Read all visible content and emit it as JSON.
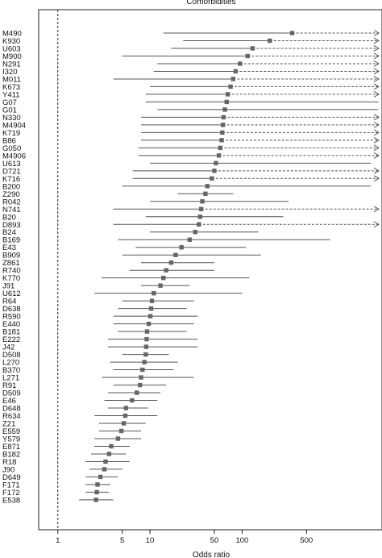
{
  "chart_data": {
    "type": "forest",
    "title": "Comorbidities",
    "xlabel": "Odds ratio",
    "x_scale": "log",
    "xlim": [
      0.62,
      3300
    ],
    "x_ticks": [
      1,
      5,
      10,
      50,
      100,
      500
    ],
    "reference_line": 1,
    "rows": [
      {
        "label": "M490",
        "or": 350,
        "lo": 14,
        "hi": 3000,
        "arrow": true
      },
      {
        "label": "K930",
        "or": 200,
        "lo": 23,
        "hi": 3000,
        "arrow": true
      },
      {
        "label": "U603",
        "or": 130,
        "lo": 17,
        "hi": 3000,
        "arrow": true
      },
      {
        "label": "M900",
        "or": 115,
        "lo": 5,
        "hi": 3000,
        "arrow": true
      },
      {
        "label": "N291",
        "or": 95,
        "lo": 12,
        "hi": 3000,
        "arrow": true
      },
      {
        "label": "I320",
        "or": 85,
        "lo": 11,
        "hi": 3000,
        "arrow": true
      },
      {
        "label": "M011",
        "or": 80,
        "lo": 4,
        "hi": 3000,
        "arrow": true
      },
      {
        "label": "K673",
        "or": 75,
        "lo": 10,
        "hi": 3000,
        "arrow": true
      },
      {
        "label": "Y411",
        "or": 70,
        "lo": 9,
        "hi": 3000,
        "arrow": true
      },
      {
        "label": "G07",
        "or": 68,
        "lo": 9,
        "hi": 3000,
        "arrow": false
      },
      {
        "label": "G01",
        "or": 65,
        "lo": 12,
        "hi": 3000,
        "arrow": false
      },
      {
        "label": "N330",
        "or": 63,
        "lo": 8,
        "hi": 3000,
        "arrow": true
      },
      {
        "label": "M4904",
        "or": 62,
        "lo": 8,
        "hi": 3000,
        "arrow": true
      },
      {
        "label": "K719",
        "or": 61,
        "lo": 8,
        "hi": 3000,
        "arrow": true
      },
      {
        "label": "B86",
        "or": 60,
        "lo": 8,
        "hi": 3000,
        "arrow": true
      },
      {
        "label": "G050",
        "or": 58,
        "lo": 7.5,
        "hi": 3000,
        "arrow": true
      },
      {
        "label": "M4906",
        "or": 56,
        "lo": 7.5,
        "hi": 3000,
        "arrow": true
      },
      {
        "label": "U613",
        "or": 52,
        "lo": 10,
        "hi": 2500,
        "arrow": false
      },
      {
        "label": "D721",
        "or": 50,
        "lo": 6.5,
        "hi": 3000,
        "arrow": true
      },
      {
        "label": "K716",
        "or": 47,
        "lo": 6.5,
        "hi": 3000,
        "arrow": true
      },
      {
        "label": "B200",
        "or": 42,
        "lo": 5,
        "hi": 2500,
        "arrow": false
      },
      {
        "label": "Z290",
        "or": 40,
        "lo": 20,
        "hi": 80,
        "arrow": false
      },
      {
        "label": "R042",
        "or": 37,
        "lo": 10,
        "hi": 320,
        "arrow": false
      },
      {
        "label": "N741",
        "or": 36,
        "lo": 4,
        "hi": 3000,
        "arrow": true
      },
      {
        "label": "B20",
        "or": 35,
        "lo": 9,
        "hi": 280,
        "arrow": false
      },
      {
        "label": "D893",
        "or": 34,
        "lo": 4,
        "hi": 3000,
        "arrow": true
      },
      {
        "label": "B24",
        "or": 31,
        "lo": 10,
        "hi": 150,
        "arrow": false
      },
      {
        "label": "B169",
        "or": 27,
        "lo": 4.5,
        "hi": 900,
        "arrow": false
      },
      {
        "label": "E43",
        "or": 22,
        "lo": 7,
        "hi": 110,
        "arrow": false
      },
      {
        "label": "B909",
        "or": 19,
        "lo": 5,
        "hi": 160,
        "arrow": false
      },
      {
        "label": "Z861",
        "or": 17,
        "lo": 8,
        "hi": 50,
        "arrow": false
      },
      {
        "label": "R740",
        "or": 15,
        "lo": 6,
        "hi": 50,
        "arrow": false
      },
      {
        "label": "K770",
        "or": 14,
        "lo": 3,
        "hi": 120,
        "arrow": false
      },
      {
        "label": "J91",
        "or": 13,
        "lo": 8,
        "hi": 27,
        "arrow": false
      },
      {
        "label": "U612",
        "or": 11,
        "lo": 2.5,
        "hi": 100,
        "arrow": false
      },
      {
        "label": "R64",
        "or": 10.5,
        "lo": 5,
        "hi": 30,
        "arrow": false
      },
      {
        "label": "D638",
        "or": 10.3,
        "lo": 4.5,
        "hi": 25,
        "arrow": false
      },
      {
        "label": "R590",
        "or": 10.1,
        "lo": 4,
        "hi": 33,
        "arrow": false
      },
      {
        "label": "E440",
        "or": 9.7,
        "lo": 4,
        "hi": 30,
        "arrow": false
      },
      {
        "label": "B181",
        "or": 9.3,
        "lo": 4.5,
        "hi": 25,
        "arrow": false
      },
      {
        "label": "E222",
        "or": 9.2,
        "lo": 3.5,
        "hi": 33,
        "arrow": false
      },
      {
        "label": "J42",
        "or": 9.1,
        "lo": 3.5,
        "hi": 33,
        "arrow": false
      },
      {
        "label": "D508",
        "or": 9.0,
        "lo": 5,
        "hi": 16,
        "arrow": false
      },
      {
        "label": "L270",
        "or": 8.7,
        "lo": 3.7,
        "hi": 20,
        "arrow": false
      },
      {
        "label": "B370",
        "or": 8.3,
        "lo": 4,
        "hi": 18,
        "arrow": false
      },
      {
        "label": "L271",
        "or": 8.0,
        "lo": 3,
        "hi": 30,
        "arrow": false
      },
      {
        "label": "R91",
        "or": 7.8,
        "lo": 4,
        "hi": 15,
        "arrow": false
      },
      {
        "label": "D509",
        "or": 7.2,
        "lo": 3.5,
        "hi": 13,
        "arrow": false
      },
      {
        "label": "E46",
        "or": 6.4,
        "lo": 3.2,
        "hi": 12,
        "arrow": false
      },
      {
        "label": "D648",
        "or": 5.5,
        "lo": 3.5,
        "hi": 9.5,
        "arrow": false
      },
      {
        "label": "R634",
        "or": 5.4,
        "lo": 2.5,
        "hi": 12,
        "arrow": false
      },
      {
        "label": "Z21",
        "or": 5.2,
        "lo": 2.8,
        "hi": 9,
        "arrow": false
      },
      {
        "label": "E559",
        "or": 4.9,
        "lo": 2.8,
        "hi": 8,
        "arrow": false
      },
      {
        "label": "Y579",
        "or": 4.5,
        "lo": 2.5,
        "hi": 8,
        "arrow": false
      },
      {
        "label": "E871",
        "or": 3.8,
        "lo": 2.5,
        "hi": 6,
        "arrow": false
      },
      {
        "label": "B182",
        "or": 3.6,
        "lo": 2.3,
        "hi": 5.5,
        "arrow": false
      },
      {
        "label": "R18",
        "or": 3.3,
        "lo": 2.0,
        "hi": 6,
        "arrow": false
      },
      {
        "label": "J90",
        "or": 3.2,
        "lo": 2.2,
        "hi": 5,
        "arrow": false
      },
      {
        "label": "D649",
        "or": 2.9,
        "lo": 2.0,
        "hi": 4.5,
        "arrow": false
      },
      {
        "label": "F171",
        "or": 2.7,
        "lo": 2.0,
        "hi": 3.7,
        "arrow": false
      },
      {
        "label": "F172",
        "or": 2.65,
        "lo": 2.0,
        "hi": 3.6,
        "arrow": false
      },
      {
        "label": "E538",
        "or": 2.6,
        "lo": 1.7,
        "hi": 4.0,
        "arrow": false
      }
    ]
  }
}
